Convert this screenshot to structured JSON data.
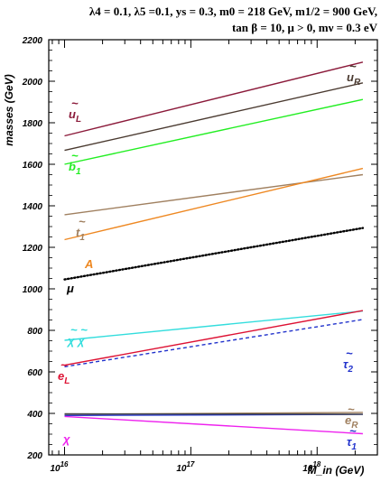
{
  "header": {
    "line1": "λ4 = 0.1, λ5 =0.1, ys = 0.3, m0 = 218 GeV, m1/2 = 900 GeV,",
    "line2": "tan β = 10,  μ > 0, mν = 0.3 eV"
  },
  "chart_data": {
    "type": "line",
    "xlabel": "M_in  (GeV)",
    "ylabel": "masses  (GeV)",
    "xscale": "log",
    "xlim": [
      7500000000000000.0,
      3e+18
    ],
    "ylim": [
      200,
      2200
    ],
    "yticks": [
      "200",
      "400",
      "600",
      "800",
      "1000",
      "1200",
      "1400",
      "1600",
      "1800",
      "2000",
      "2200"
    ],
    "xticks": [
      {
        "value": 1e+16,
        "base": "10",
        "exp": "16"
      },
      {
        "value": 1e+17,
        "base": "10",
        "exp": "17"
      },
      {
        "value": 1e+18,
        "base": "10",
        "exp": "18"
      }
    ],
    "grid": false,
    "series": [
      {
        "name": "ũL",
        "label_main": "u",
        "label_sub": "L",
        "tilde": true,
        "color": "#8b1a3a",
        "dash": "solid",
        "x": [
          1e+16,
          2.3e+18
        ],
        "y": [
          1737,
          2092
        ]
      },
      {
        "name": "ũR",
        "label_main": "u",
        "label_sub": "R",
        "tilde": true,
        "color": "#4a3a30",
        "dash": "solid",
        "x": [
          1e+16,
          2.3e+18
        ],
        "y": [
          1667,
          1992
        ]
      },
      {
        "name": "b̃1",
        "label_main": "b",
        "label_sub": "1",
        "tilde": true,
        "color": "#22ee22",
        "dash": "solid",
        "x": [
          1e+16,
          2.3e+18
        ],
        "y": [
          1600,
          1912
        ]
      },
      {
        "name": "t̃1",
        "label_main": "t",
        "label_sub": "1",
        "tilde": true,
        "color": "#a08060",
        "dash": "solid",
        "x": [
          1e+16,
          2.3e+18
        ],
        "y": [
          1357,
          1550
        ]
      },
      {
        "name": "A",
        "label_main": "A",
        "label_sub": "",
        "tilde": false,
        "color": "#ee8822",
        "dash": "solid",
        "x": [
          1e+16,
          2.3e+18
        ],
        "y": [
          1237,
          1580
        ]
      },
      {
        "name": "μ",
        "label_main": "μ",
        "label_sub": "",
        "tilde": false,
        "color": "#000000",
        "dash": "dotted",
        "x": [
          1e+16,
          2.3e+18
        ],
        "y": [
          1045,
          1293
        ]
      },
      {
        "name": "χ̃ χ̃",
        "label_main": "χ χ",
        "label_sub": "",
        "tilde": true,
        "color": "#33dddd",
        "dash": "solid",
        "x": [
          1e+16,
          2.3e+18
        ],
        "y": [
          752,
          893
        ]
      },
      {
        "name": "ẽL",
        "label_main": "e",
        "label_sub": "L",
        "tilde": true,
        "color": "#dd1133",
        "dash": "solid",
        "x": [
          1e+16,
          2.3e+18
        ],
        "y": [
          632,
          895
        ]
      },
      {
        "name": "τ̃2",
        "label_main": "τ",
        "label_sub": "2",
        "tilde": true,
        "color": "#2233cc",
        "dash": "dashed",
        "x": [
          1e+16,
          2.3e+18
        ],
        "y": [
          625,
          852
        ]
      },
      {
        "name": "ẽR",
        "label_main": "e",
        "label_sub": "R",
        "tilde": true,
        "color": "#a08060",
        "dash": "solid",
        "x": [
          1e+16,
          2.3e+18
        ],
        "y": [
          395,
          405
        ]
      },
      {
        "name": "τ̃1",
        "label_main": "τ",
        "label_sub": "1",
        "tilde": true,
        "color": "#2233cc",
        "dash": "solid",
        "x": [
          1e+16,
          2.3e+18
        ],
        "y": [
          390,
          395
        ]
      },
      {
        "name": "χ",
        "label_main": "χ",
        "label_sub": "",
        "tilde": false,
        "color": "#ee22ee",
        "dash": "solid",
        "x": [
          1e+16,
          2.3e+18
        ],
        "y": [
          385,
          302
        ]
      },
      {
        "name": "",
        "label_main": "",
        "label_sub": "",
        "tilde": false,
        "color": "#444444",
        "dash": "solid",
        "x": [
          1e+16,
          2.3e+18
        ],
        "y": [
          398,
          396
        ]
      }
    ]
  }
}
